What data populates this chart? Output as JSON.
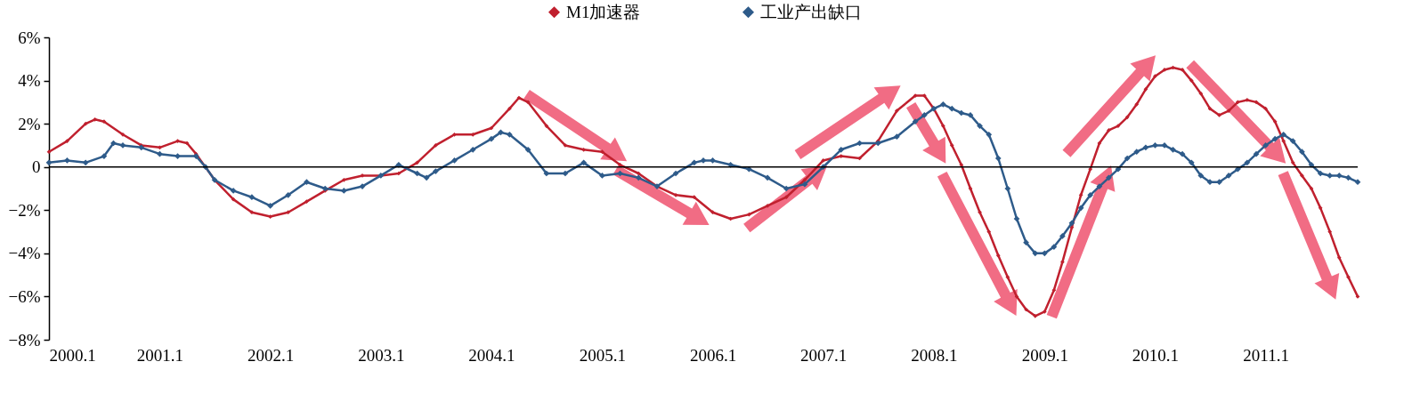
{
  "chart_data": {
    "type": "line",
    "legend": "top",
    "marker": "diamond",
    "line_style": "solid",
    "grid": false,
    "xlim": [
      "2000-01",
      "2011-11"
    ],
    "xticks": [
      {
        "value": "2000-01",
        "label": "2000.1"
      },
      {
        "value": "2001-01",
        "label": "2001.1"
      },
      {
        "value": "2002-01",
        "label": "2002.1"
      },
      {
        "value": "2003-01",
        "label": "2003.1"
      },
      {
        "value": "2004-01",
        "label": "2004.1"
      },
      {
        "value": "2005-01",
        "label": "2005.1"
      },
      {
        "value": "2006-01",
        "label": "2006.1"
      },
      {
        "value": "2007-01",
        "label": "2007.1"
      },
      {
        "value": "2008-01",
        "label": "2008.1"
      },
      {
        "value": "2009-01",
        "label": "2009.1"
      },
      {
        "value": "2010-01",
        "label": "2010.1"
      },
      {
        "value": "2011-01",
        "label": "2011.1"
      }
    ],
    "ylim": [
      -8,
      6
    ],
    "yticks": [
      {
        "value": -8,
        "label": "−8%"
      },
      {
        "value": -6,
        "label": "−6%"
      },
      {
        "value": -4,
        "label": "−4%"
      },
      {
        "value": -2,
        "label": "−2%"
      },
      {
        "value": 0,
        "label": "0"
      },
      {
        "value": 2,
        "label": "2%"
      },
      {
        "value": 4,
        "label": "4%"
      },
      {
        "value": 6,
        "label": "6%"
      }
    ],
    "ref_lines": [
      {
        "axis": "y",
        "value": 0,
        "color": "#000000"
      }
    ],
    "series": [
      {
        "name": "M1加速器",
        "color": "#c0202e",
        "x": [
          "2000-01",
          "2000-03",
          "2000-05",
          "2000-06",
          "2000-07",
          "2000-09",
          "2000-11",
          "2001-01",
          "2001-03",
          "2001-04",
          "2001-05",
          "2001-07",
          "2001-09",
          "2001-11",
          "2002-01",
          "2002-03",
          "2002-05",
          "2002-07",
          "2002-09",
          "2002-11",
          "2003-01",
          "2003-03",
          "2003-05",
          "2003-07",
          "2003-09",
          "2003-11",
          "2004-01",
          "2004-03",
          "2004-04",
          "2004-05",
          "2004-07",
          "2004-09",
          "2004-11",
          "2005-01",
          "2005-03",
          "2005-05",
          "2005-07",
          "2005-09",
          "2005-11",
          "2006-01",
          "2006-03",
          "2006-05",
          "2006-07",
          "2006-09",
          "2006-11",
          "2007-01",
          "2007-03",
          "2007-05",
          "2007-07",
          "2007-09",
          "2007-11",
          "2007-12",
          "2008-01",
          "2008-02",
          "2008-03",
          "2008-04",
          "2008-05",
          "2008-06",
          "2008-07",
          "2008-08",
          "2008-09",
          "2008-10",
          "2008-11",
          "2008-12",
          "2009-01",
          "2009-02",
          "2009-03",
          "2009-04",
          "2009-05",
          "2009-06",
          "2009-07",
          "2009-08",
          "2009-09",
          "2009-10",
          "2009-11",
          "2009-12",
          "2010-01",
          "2010-02",
          "2010-03",
          "2010-04",
          "2010-05",
          "2010-06",
          "2010-07",
          "2010-08",
          "2010-09",
          "2010-10",
          "2010-11",
          "2010-12",
          "2011-01",
          "2011-02",
          "2011-03",
          "2011-04",
          "2011-05",
          "2011-06",
          "2011-07",
          "2011-08",
          "2011-09",
          "2011-10",
          "2011-11"
        ],
        "values": [
          0.7,
          1.2,
          2.0,
          2.2,
          2.1,
          1.5,
          1.0,
          0.9,
          1.2,
          1.1,
          0.6,
          -0.6,
          -1.5,
          -2.1,
          -2.3,
          -2.1,
          -1.6,
          -1.1,
          -0.6,
          -0.4,
          -0.4,
          -0.3,
          0.2,
          1.0,
          1.5,
          1.5,
          1.8,
          2.7,
          3.2,
          3.0,
          1.9,
          1.0,
          0.8,
          0.7,
          0.1,
          -0.3,
          -0.9,
          -1.3,
          -1.4,
          -2.1,
          -2.4,
          -2.2,
          -1.8,
          -1.4,
          -0.6,
          0.3,
          0.5,
          0.4,
          1.2,
          2.6,
          3.3,
          3.3,
          2.7,
          1.9,
          1.0,
          0.1,
          -1.0,
          -2.1,
          -3.0,
          -4.1,
          -5.1,
          -6.0,
          -6.6,
          -6.9,
          -6.7,
          -5.7,
          -4.4,
          -2.8,
          -1.3,
          -0.1,
          1.1,
          1.7,
          1.9,
          2.3,
          2.9,
          3.6,
          4.2,
          4.5,
          4.6,
          4.5,
          4.0,
          3.4,
          2.7,
          2.4,
          2.6,
          3.0,
          3.1,
          3.0,
          2.7,
          2.1,
          1.2,
          0.2,
          -0.4,
          -1.0,
          -1.9,
          -3.0,
          -4.2,
          -5.1,
          -6.0
        ]
      },
      {
        "name": "工业产出缺口",
        "color": "#2e5b8a",
        "x": [
          "2000-01",
          "2000-03",
          "2000-05",
          "2000-07",
          "2000-08",
          "2000-09",
          "2000-11",
          "2001-01",
          "2001-03",
          "2001-05",
          "2001-06",
          "2001-07",
          "2001-09",
          "2001-11",
          "2002-01",
          "2002-03",
          "2002-05",
          "2002-07",
          "2002-09",
          "2002-11",
          "2003-01",
          "2003-03",
          "2003-05",
          "2003-06",
          "2003-07",
          "2003-09",
          "2003-11",
          "2004-01",
          "2004-02",
          "2004-03",
          "2004-05",
          "2004-07",
          "2004-09",
          "2004-11",
          "2005-01",
          "2005-03",
          "2005-05",
          "2005-07",
          "2005-09",
          "2005-11",
          "2005-12",
          "2006-01",
          "2006-03",
          "2006-05",
          "2006-07",
          "2006-09",
          "2006-11",
          "2007-01",
          "2007-03",
          "2007-05",
          "2007-07",
          "2007-09",
          "2007-11",
          "2007-12",
          "2008-01",
          "2008-02",
          "2008-03",
          "2008-04",
          "2008-05",
          "2008-06",
          "2008-07",
          "2008-08",
          "2008-09",
          "2008-10",
          "2008-11",
          "2008-12",
          "2009-01",
          "2009-02",
          "2009-03",
          "2009-04",
          "2009-05",
          "2009-06",
          "2009-07",
          "2009-08",
          "2009-09",
          "2009-10",
          "2009-11",
          "2009-12",
          "2010-01",
          "2010-02",
          "2010-03",
          "2010-04",
          "2010-05",
          "2010-06",
          "2010-07",
          "2010-08",
          "2010-09",
          "2010-10",
          "2010-11",
          "2010-12",
          "2011-01",
          "2011-02",
          "2011-03",
          "2011-04",
          "2011-05",
          "2011-06",
          "2011-07",
          "2011-08",
          "2011-09",
          "2011-10",
          "2011-11"
        ],
        "values": [
          0.2,
          0.3,
          0.2,
          0.5,
          1.1,
          1.0,
          0.9,
          0.6,
          0.5,
          0.5,
          0.0,
          -0.6,
          -1.1,
          -1.4,
          -1.8,
          -1.3,
          -0.7,
          -1.0,
          -1.1,
          -0.9,
          -0.4,
          0.1,
          -0.3,
          -0.5,
          -0.2,
          0.3,
          0.8,
          1.3,
          1.6,
          1.5,
          0.8,
          -0.3,
          -0.3,
          0.2,
          -0.4,
          -0.3,
          -0.5,
          -0.9,
          -0.3,
          0.2,
          0.3,
          0.3,
          0.1,
          -0.1,
          -0.5,
          -1.0,
          -0.8,
          0.0,
          0.8,
          1.1,
          1.1,
          1.4,
          2.1,
          2.4,
          2.7,
          2.9,
          2.7,
          2.5,
          2.4,
          1.9,
          1.5,
          0.4,
          -1.0,
          -2.4,
          -3.5,
          -4.0,
          -4.0,
          -3.7,
          -3.2,
          -2.6,
          -1.9,
          -1.3,
          -0.9,
          -0.5,
          -0.1,
          0.4,
          0.7,
          0.9,
          1.0,
          1.0,
          0.8,
          0.6,
          0.2,
          -0.4,
          -0.7,
          -0.7,
          -0.4,
          -0.1,
          0.2,
          0.6,
          1.0,
          1.3,
          1.5,
          1.2,
          0.7,
          0.1,
          -0.3,
          -0.4,
          -0.4,
          -0.5,
          -0.7
        ]
      }
    ]
  }
}
